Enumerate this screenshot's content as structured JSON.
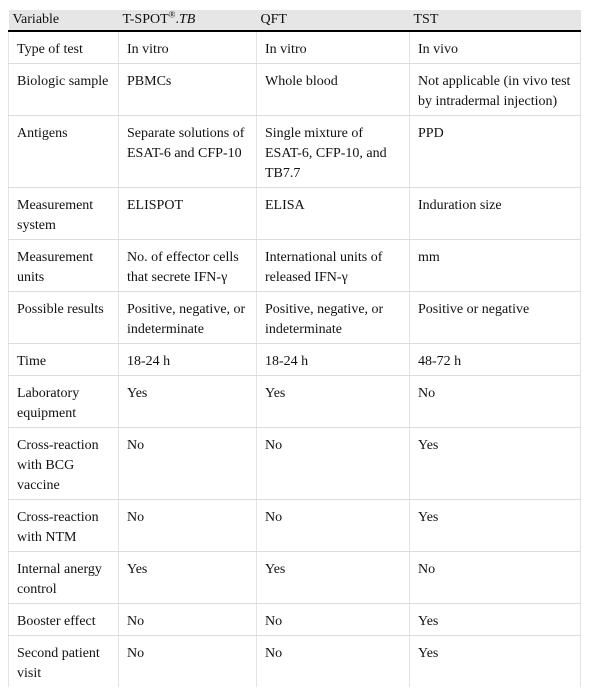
{
  "header": {
    "variable": "Variable",
    "tspot_main": "T-SPOT",
    "tspot_sup": "®",
    "tspot_dot": ".",
    "tspot_italic": "TB",
    "qft": "QFT",
    "tst": "TST"
  },
  "rows": [
    {
      "variable": "Type of test",
      "tspot": "In vitro",
      "qft": "In vitro",
      "tst": "In vivo"
    },
    {
      "variable": "Biologic sample",
      "tspot": "PBMCs",
      "qft": "Whole blood",
      "tst": "Not applicable (in vivo test by intradermal injection)"
    },
    {
      "variable": "Antigens",
      "tspot": "Separate solutions of ESAT-6 and CFP-10",
      "qft": "Single mixture of ESAT-6, CFP-10, and TB7.7",
      "tst": "PPD"
    },
    {
      "variable": "Measurement system",
      "tspot": "ELISPOT",
      "qft": "ELISA",
      "tst": "Induration size"
    },
    {
      "variable": "Measurement units",
      "tspot": "No. of effector cells that secrete IFN-γ",
      "qft": "International units of released IFN-γ",
      "tst": "mm"
    },
    {
      "variable": "Possible results",
      "tspot": "Positive, negative, or indeterminate",
      "qft": "Positive, negative, or indeterminate",
      "tst": "Positive or negative"
    },
    {
      "variable": "Time",
      "tspot": "18-24 h",
      "qft": "18-24 h",
      "tst": "48-72 h"
    },
    {
      "variable": "Laboratory equipment",
      "tspot": "Yes",
      "qft": "Yes",
      "tst": "No"
    },
    {
      "variable": "Cross-reaction with BCG vaccine",
      "tspot": "No",
      "qft": "No",
      "tst": "Yes"
    },
    {
      "variable": "Cross-reaction with NTM",
      "tspot": "No",
      "qft": "No",
      "tst": "Yes"
    },
    {
      "variable": "Internal anergy control",
      "tspot": "Yes",
      "qft": "Yes",
      "tst": "No"
    },
    {
      "variable": "Booster effect",
      "tspot": "No",
      "qft": "No",
      "tst": "Yes"
    },
    {
      "variable": "Second patient visit",
      "tspot": "No",
      "qft": "No",
      "tst": "Yes"
    }
  ]
}
